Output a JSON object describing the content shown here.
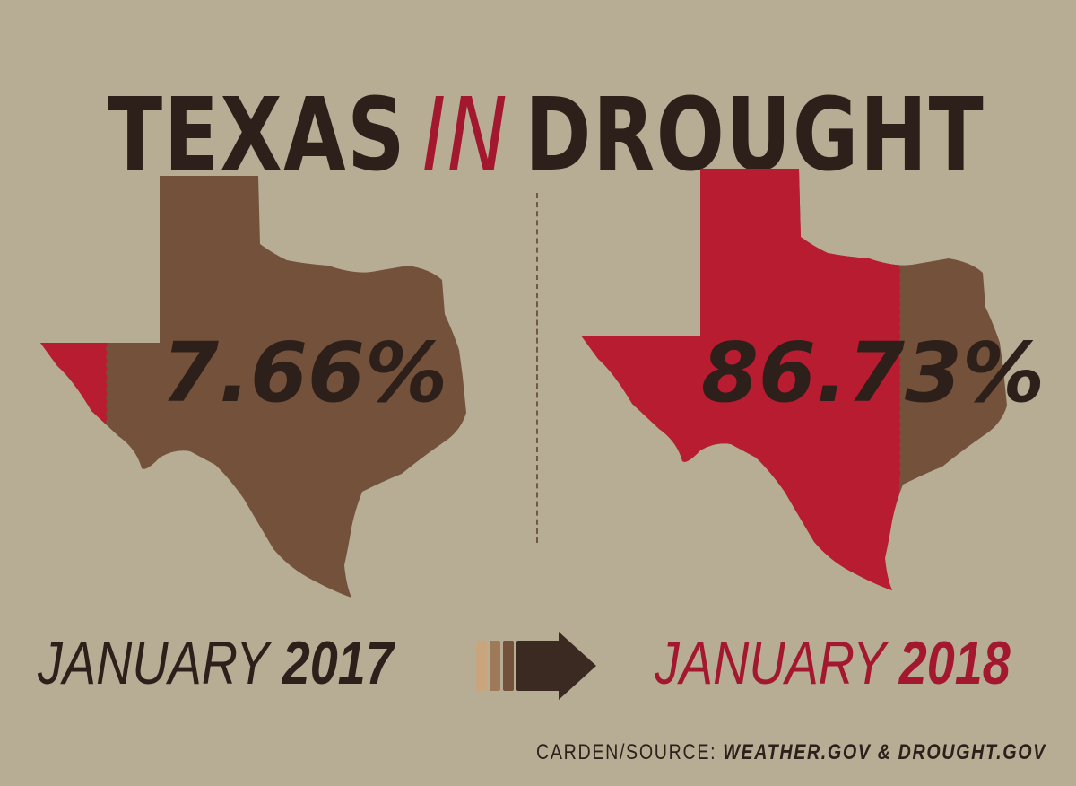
{
  "title": {
    "word1": "TEXAS",
    "word2": "IN",
    "word3": "DROUGHT"
  },
  "panels": [
    {
      "percent": "7.66%",
      "month": "JANUARY",
      "year": "2017",
      "drought_fraction": 0.0766
    },
    {
      "percent": "86.73%",
      "month": "JANUARY",
      "year": "2018",
      "drought_fraction": 0.8673
    }
  ],
  "source": {
    "prefix": "CARDEN/SOURCE:",
    "sources": "WEATHER.GOV & DROUGHT.GOV"
  },
  "colors": {
    "background": "#b7ad95",
    "land": "#73513a",
    "drought": "#b81c30",
    "text_dark": "#2d1f1a",
    "accent": "#a3182f",
    "arrow_shades": [
      "#c8a57c",
      "#9f7a58",
      "#73513a",
      "#3a2a22"
    ]
  }
}
